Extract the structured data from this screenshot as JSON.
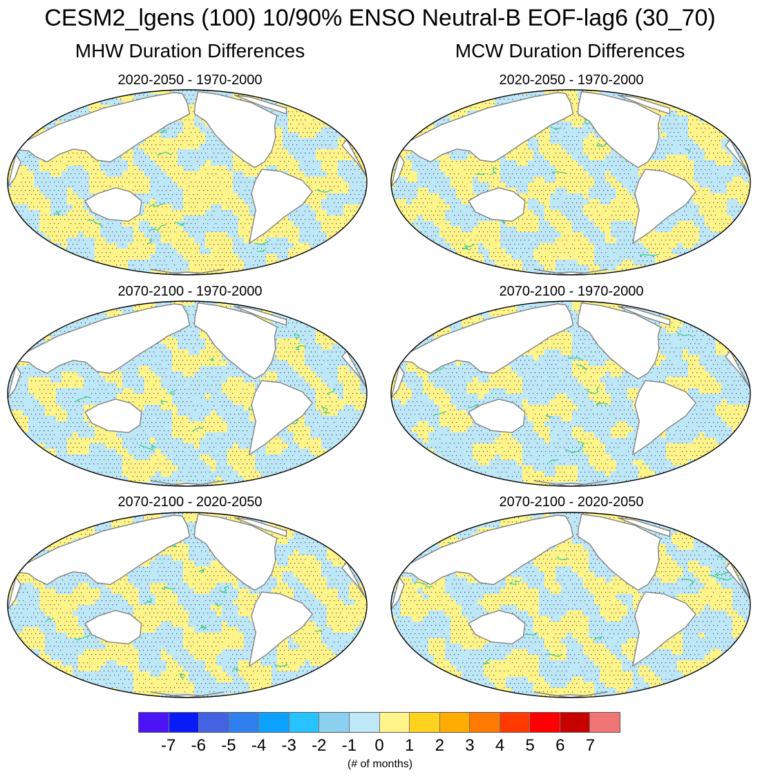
{
  "figure": {
    "title": "CESM2_lgens (100) 10/90% ENSO Neutral-B EOF-lag6 (30_70)",
    "columns": [
      {
        "title": "MHW Duration Differences",
        "panels": [
          {
            "title": "2020-2050 - 1970-2000",
            "seed": 11,
            "bias": 0.15
          },
          {
            "title": "2070-2100 - 1970-2000",
            "seed": 23,
            "bias": -0.2
          },
          {
            "title": "2070-2100 - 2020-2050",
            "seed": 37,
            "bias": 0.05
          }
        ]
      },
      {
        "title": "MCW Duration Differences",
        "panels": [
          {
            "title": "2020-2050 - 1970-2000",
            "seed": 41,
            "bias": 0.1
          },
          {
            "title": "2070-2100 - 1970-2000",
            "seed": 53,
            "bias": -0.25
          },
          {
            "title": "2070-2100 - 2020-2050",
            "seed": 67,
            "bias": 0.0
          }
        ]
      }
    ]
  },
  "colorbar": {
    "colors": [
      "#4b13f5",
      "#0a1cf5",
      "#4363e3",
      "#2f7fee",
      "#0ea2ff",
      "#28c3ff",
      "#8bd0ef",
      "#bee7f7",
      "#fff48a",
      "#ffd21f",
      "#ffab00",
      "#ff7a00",
      "#ff3a00",
      "#ff0000",
      "#c70000",
      "#f07676"
    ],
    "tick_labels": [
      "-7",
      "-6",
      "-5",
      "-4",
      "-3",
      "-2",
      "-1",
      "0",
      "1",
      "2",
      "3",
      "4",
      "5",
      "6",
      "7"
    ],
    "units": "(# of months)"
  },
  "map_style": {
    "land": "#ffffff",
    "coast": "#808080",
    "neg_fill": "#bee7f7",
    "pos_fill": "#fff48a",
    "stipple": "#1a1a33",
    "contour": "#3fcf8e",
    "border": "#000000"
  }
}
